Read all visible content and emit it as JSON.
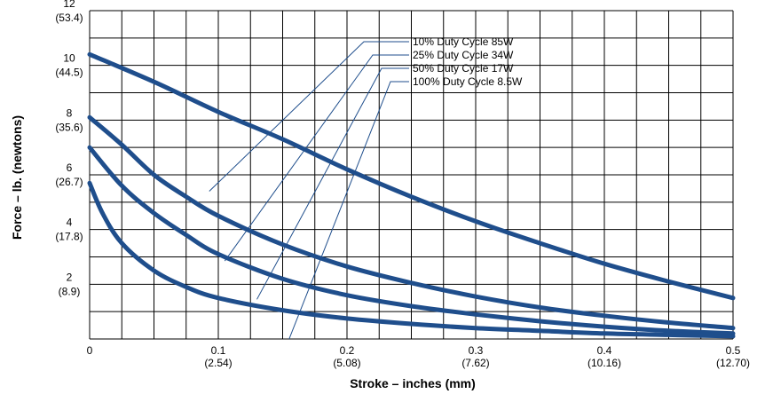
{
  "chart_data": {
    "type": "line",
    "xlabel": "Stroke – inches (mm)",
    "ylabel": "Force – lb. (newtons)",
    "xlim": [
      0,
      0.5
    ],
    "ylim": [
      0,
      12
    ],
    "grid": true,
    "x_ticks": [
      {
        "value": 0,
        "label": "0",
        "sublabel": ""
      },
      {
        "value": 0.1,
        "label": "0.1",
        "sublabel": "(2.54)"
      },
      {
        "value": 0.2,
        "label": "0.2",
        "sublabel": "(5.08)"
      },
      {
        "value": 0.3,
        "label": "0.3",
        "sublabel": "(7.62)"
      },
      {
        "value": 0.4,
        "label": "0.4",
        "sublabel": "(10.16)"
      },
      {
        "value": 0.5,
        "label": "0.5",
        "sublabel": "(12.70)"
      }
    ],
    "y_ticks": [
      {
        "value": 2,
        "label": "2",
        "sublabel": "(8.9)"
      },
      {
        "value": 4,
        "label": "4",
        "sublabel": "(17.8)"
      },
      {
        "value": 6,
        "label": "6",
        "sublabel": "(26.7)"
      },
      {
        "value": 8,
        "label": "8",
        "sublabel": "(35.6)"
      },
      {
        "value": 10,
        "label": "10",
        "sublabel": "(44.5)"
      },
      {
        "value": 12,
        "label": "12",
        "sublabel": "(53.4)"
      }
    ],
    "line_color": "#1f4e8c",
    "series": [
      {
        "name": "10% Duty Cycle 85W",
        "x": [
          0,
          0.05,
          0.1,
          0.15,
          0.2,
          0.25,
          0.3,
          0.35,
          0.4,
          0.45,
          0.5
        ],
        "y": [
          10.4,
          9.4,
          8.3,
          7.3,
          6.2,
          5.2,
          4.3,
          3.5,
          2.75,
          2.1,
          1.5
        ],
        "label_anchor": [
          0.093,
          5.4
        ]
      },
      {
        "name": "25% Duty Cycle 34W",
        "x": [
          0,
          0.025,
          0.05,
          0.075,
          0.1,
          0.15,
          0.2,
          0.25,
          0.3,
          0.35,
          0.4,
          0.45,
          0.5
        ],
        "y": [
          8.1,
          7.1,
          6.0,
          5.2,
          4.5,
          3.45,
          2.65,
          2.05,
          1.55,
          1.15,
          0.85,
          0.6,
          0.4
        ],
        "label_anchor": [
          0.105,
          2.85
        ]
      },
      {
        "name": "50% Duty Cycle 17W",
        "x": [
          0,
          0.025,
          0.05,
          0.075,
          0.1,
          0.15,
          0.2,
          0.25,
          0.3,
          0.35,
          0.4,
          0.45,
          0.5
        ],
        "y": [
          7.0,
          5.6,
          4.6,
          3.8,
          3.1,
          2.2,
          1.6,
          1.2,
          0.9,
          0.65,
          0.45,
          0.3,
          0.2
        ],
        "label_anchor": [
          0.13,
          1.45
        ]
      },
      {
        "name": "100% Duty Cycle 8.5W",
        "x": [
          0,
          0.01,
          0.025,
          0.05,
          0.075,
          0.1,
          0.15,
          0.2,
          0.25,
          0.3,
          0.35,
          0.4,
          0.45,
          0.5
        ],
        "y": [
          5.7,
          4.6,
          3.5,
          2.5,
          1.9,
          1.5,
          1.05,
          0.75,
          0.55,
          0.4,
          0.3,
          0.2,
          0.15,
          0.1
        ],
        "label_anchor": [
          0.155,
          0.0
        ]
      }
    ]
  }
}
